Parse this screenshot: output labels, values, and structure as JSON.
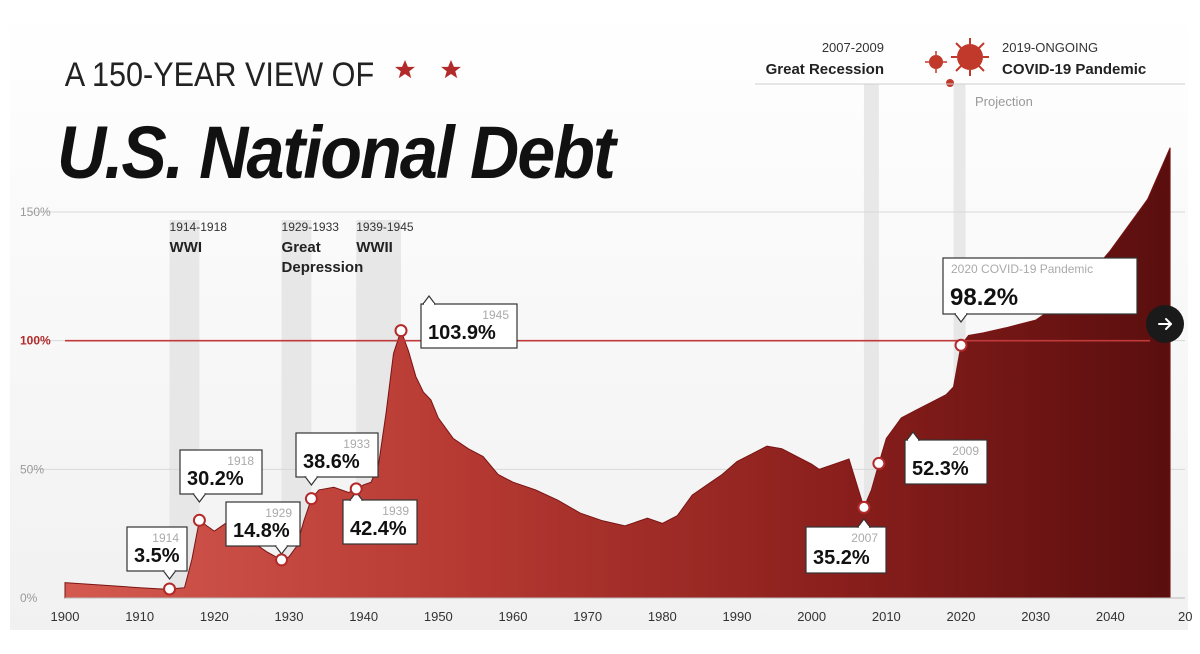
{
  "chart_data": {
    "type": "area",
    "title_line1": "A 150-YEAR VIEW OF",
    "title_line2": "U.S. National Debt",
    "x_ticks": [
      "1900",
      "1910",
      "1920",
      "1930",
      "1940",
      "1950",
      "1960",
      "1970",
      "1980",
      "1990",
      "2000",
      "2010",
      "2020",
      "2030",
      "2040",
      "20"
    ],
    "y_ticks": [
      "0%",
      "50%",
      "100%",
      "150%"
    ],
    "xlim": [
      1900,
      2050
    ],
    "ylim": [
      0,
      150
    ],
    "reference_line": 100,
    "x": [
      1900,
      1905,
      1910,
      1913,
      1914,
      1916,
      1917,
      1918,
      1919,
      1920,
      1922,
      1925,
      1927,
      1929,
      1930,
      1931,
      1932,
      1933,
      1934,
      1936,
      1938,
      1939,
      1940,
      1941,
      1942,
      1943,
      1944,
      1945,
      1946,
      1947,
      1948,
      1949,
      1950,
      1952,
      1954,
      1956,
      1958,
      1960,
      1963,
      1966,
      1969,
      1972,
      1975,
      1978,
      1980,
      1982,
      1984,
      1986,
      1988,
      1990,
      1992,
      1994,
      1996,
      1998,
      2000,
      2001,
      2003,
      2005,
      2007,
      2008,
      2009,
      2010,
      2012,
      2014,
      2016,
      2018,
      2019,
      2020,
      2021,
      2023,
      2026,
      2030,
      2035,
      2040,
      2045,
      2048
    ],
    "values": [
      6,
      5,
      4,
      3.5,
      3.5,
      4,
      15,
      30.2,
      28,
      26,
      30,
      22,
      18,
      14.8,
      16,
      20,
      30,
      38.6,
      42,
      43,
      41,
      42.4,
      44,
      45,
      52,
      72,
      95,
      103.9,
      96,
      86,
      80,
      77,
      70,
      62,
      58,
      55,
      48,
      45,
      42,
      38,
      33,
      30,
      28,
      31,
      29,
      32,
      40,
      44,
      48,
      53,
      56,
      59,
      58,
      55,
      52,
      50,
      52,
      54,
      35.2,
      42,
      52.3,
      62,
      70,
      73,
      76,
      79,
      82,
      98.2,
      102,
      103,
      105,
      108,
      118,
      135,
      155,
      175
    ],
    "segments": [
      {
        "label": "Great Recession",
        "period": "2007-2009"
      },
      {
        "label": "COVID-19 Pandemic",
        "period": "2019-ONGOING"
      }
    ],
    "projection_label": "Projection",
    "eras": [
      {
        "period": "1914-1918",
        "name": "WWI"
      },
      {
        "period": "1929-1933",
        "name": "Great\nDepression"
      },
      {
        "period": "1939-1945",
        "name": "WWII"
      }
    ],
    "callouts": [
      {
        "year_label": "1914",
        "value_label": "3.5%",
        "x": 1914,
        "y": 3.5
      },
      {
        "year_label": "1918",
        "value_label": "30.2%",
        "x": 1918,
        "y": 30.2
      },
      {
        "year_label": "1929",
        "value_label": "14.8%",
        "x": 1929,
        "y": 14.8
      },
      {
        "year_label": "1933",
        "value_label": "38.6%",
        "x": 1933,
        "y": 38.6
      },
      {
        "year_label": "1939",
        "value_label": "42.4%",
        "x": 1939,
        "y": 42.4
      },
      {
        "year_label": "1945",
        "value_label": "103.9%",
        "x": 1945,
        "y": 103.9
      },
      {
        "year_label": "2007",
        "value_label": "35.2%",
        "x": 2007,
        "y": 35.2
      },
      {
        "year_label": "2009",
        "value_label": "52.3%",
        "x": 2009,
        "y": 52.3
      },
      {
        "year_label": "2020 COVID-19 Pandemic",
        "value_label": "98.2%",
        "x": 2020,
        "y": 98.2
      }
    ],
    "colors": {
      "area_dark": "#5a0e0e",
      "area_light": "#c0463f",
      "accent": "#b22a2a",
      "gridline": "#d8d8d8",
      "reference_line": "#c0393b"
    }
  },
  "ui": {
    "next_button_icon": "arrow-right-icon",
    "stars": [
      "star-icon",
      "star-icon"
    ]
  }
}
